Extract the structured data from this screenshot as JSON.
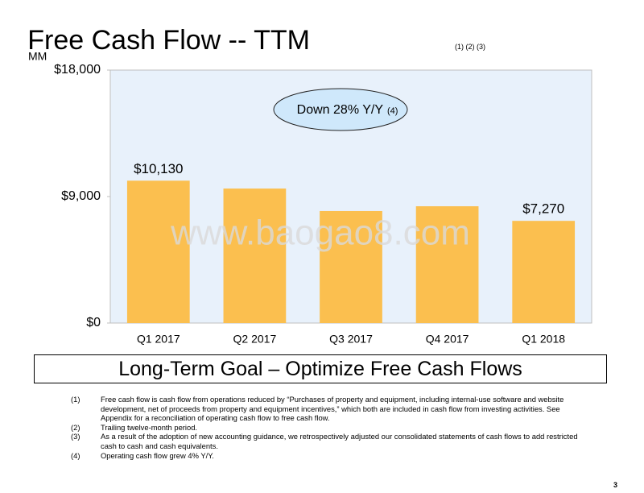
{
  "chart_data": {
    "type": "bar",
    "title": "Free Cash Flow -- TTM",
    "title_note": "(1) (2) (3)",
    "y_label": "MM",
    "annotation": {
      "text": "Down 28% Y/Y",
      "note": "(4)"
    },
    "watermark": "www.baogao8.com",
    "categories": [
      "Q1 2017",
      "Q2 2017",
      "Q3 2017",
      "Q4 2017",
      "Q1 2018"
    ],
    "values": [
      10130,
      9570,
      7970,
      8310,
      7270
    ],
    "value_labels": [
      "$10,130",
      null,
      null,
      null,
      "$7,270"
    ],
    "color": "#fbbf4f",
    "ylim": [
      0,
      18000
    ],
    "yticks": [
      {
        "value": 0,
        "label": "$0"
      },
      {
        "value": 9000,
        "label": "$9,000"
      },
      {
        "value": 18000,
        "label": "$18,000"
      }
    ],
    "grid": false
  },
  "banner": "Long-Term Goal – Optimize Free Cash Flows",
  "footnotes": [
    {
      "num": "(1)",
      "text": "Free cash flow is cash flow from operations reduced by “Purchases of property and equipment, including internal-use software and website development, net of proceeds from property and equipment incentives,” which both are included in cash flow from investing activities. See Appendix for a reconciliation of operating cash flow to free cash flow."
    },
    {
      "num": "(2)",
      "text": "Trailing twelve-month period."
    },
    {
      "num": "(3)",
      "text": "As a result of the adoption of new accounting guidance, we retrospectively adjusted our consolidated statements of cash flows to add restricted cash to cash and cash equivalents."
    },
    {
      "num": "(4)",
      "text": "Operating cash flow grew 4% Y/Y."
    }
  ],
  "page_number": "3"
}
